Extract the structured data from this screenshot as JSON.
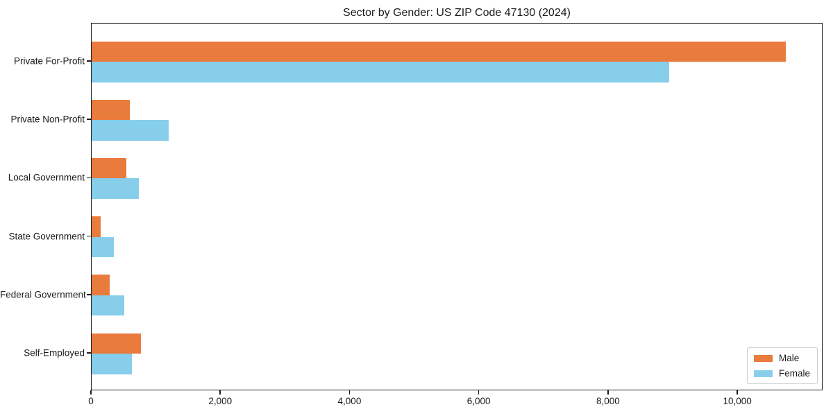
{
  "chart_data": {
    "type": "bar",
    "orientation": "horizontal",
    "title": "Sector by Gender: US ZIP Code 47130 (2024)",
    "categories": [
      "Private For-Profit",
      "Private Non-Profit",
      "Local Government",
      "State Government",
      "Federal Government",
      "Self-Employed"
    ],
    "series": [
      {
        "name": "Male",
        "color": "#E97B3D",
        "values": [
          10760,
          590,
          540,
          140,
          280,
          760
        ]
      },
      {
        "name": "Female",
        "color": "#87CEEB",
        "values": [
          8950,
          1190,
          730,
          340,
          505,
          620
        ]
      }
    ],
    "x_ticks": [
      0,
      2000,
      4000,
      6000,
      8000,
      10000
    ],
    "x_tick_labels": [
      "0",
      "2,000",
      "4,000",
      "6,000",
      "8,000",
      "10,000"
    ],
    "xlim": [
      0,
      11320
    ],
    "grid": false,
    "legend_position": "lower right"
  }
}
